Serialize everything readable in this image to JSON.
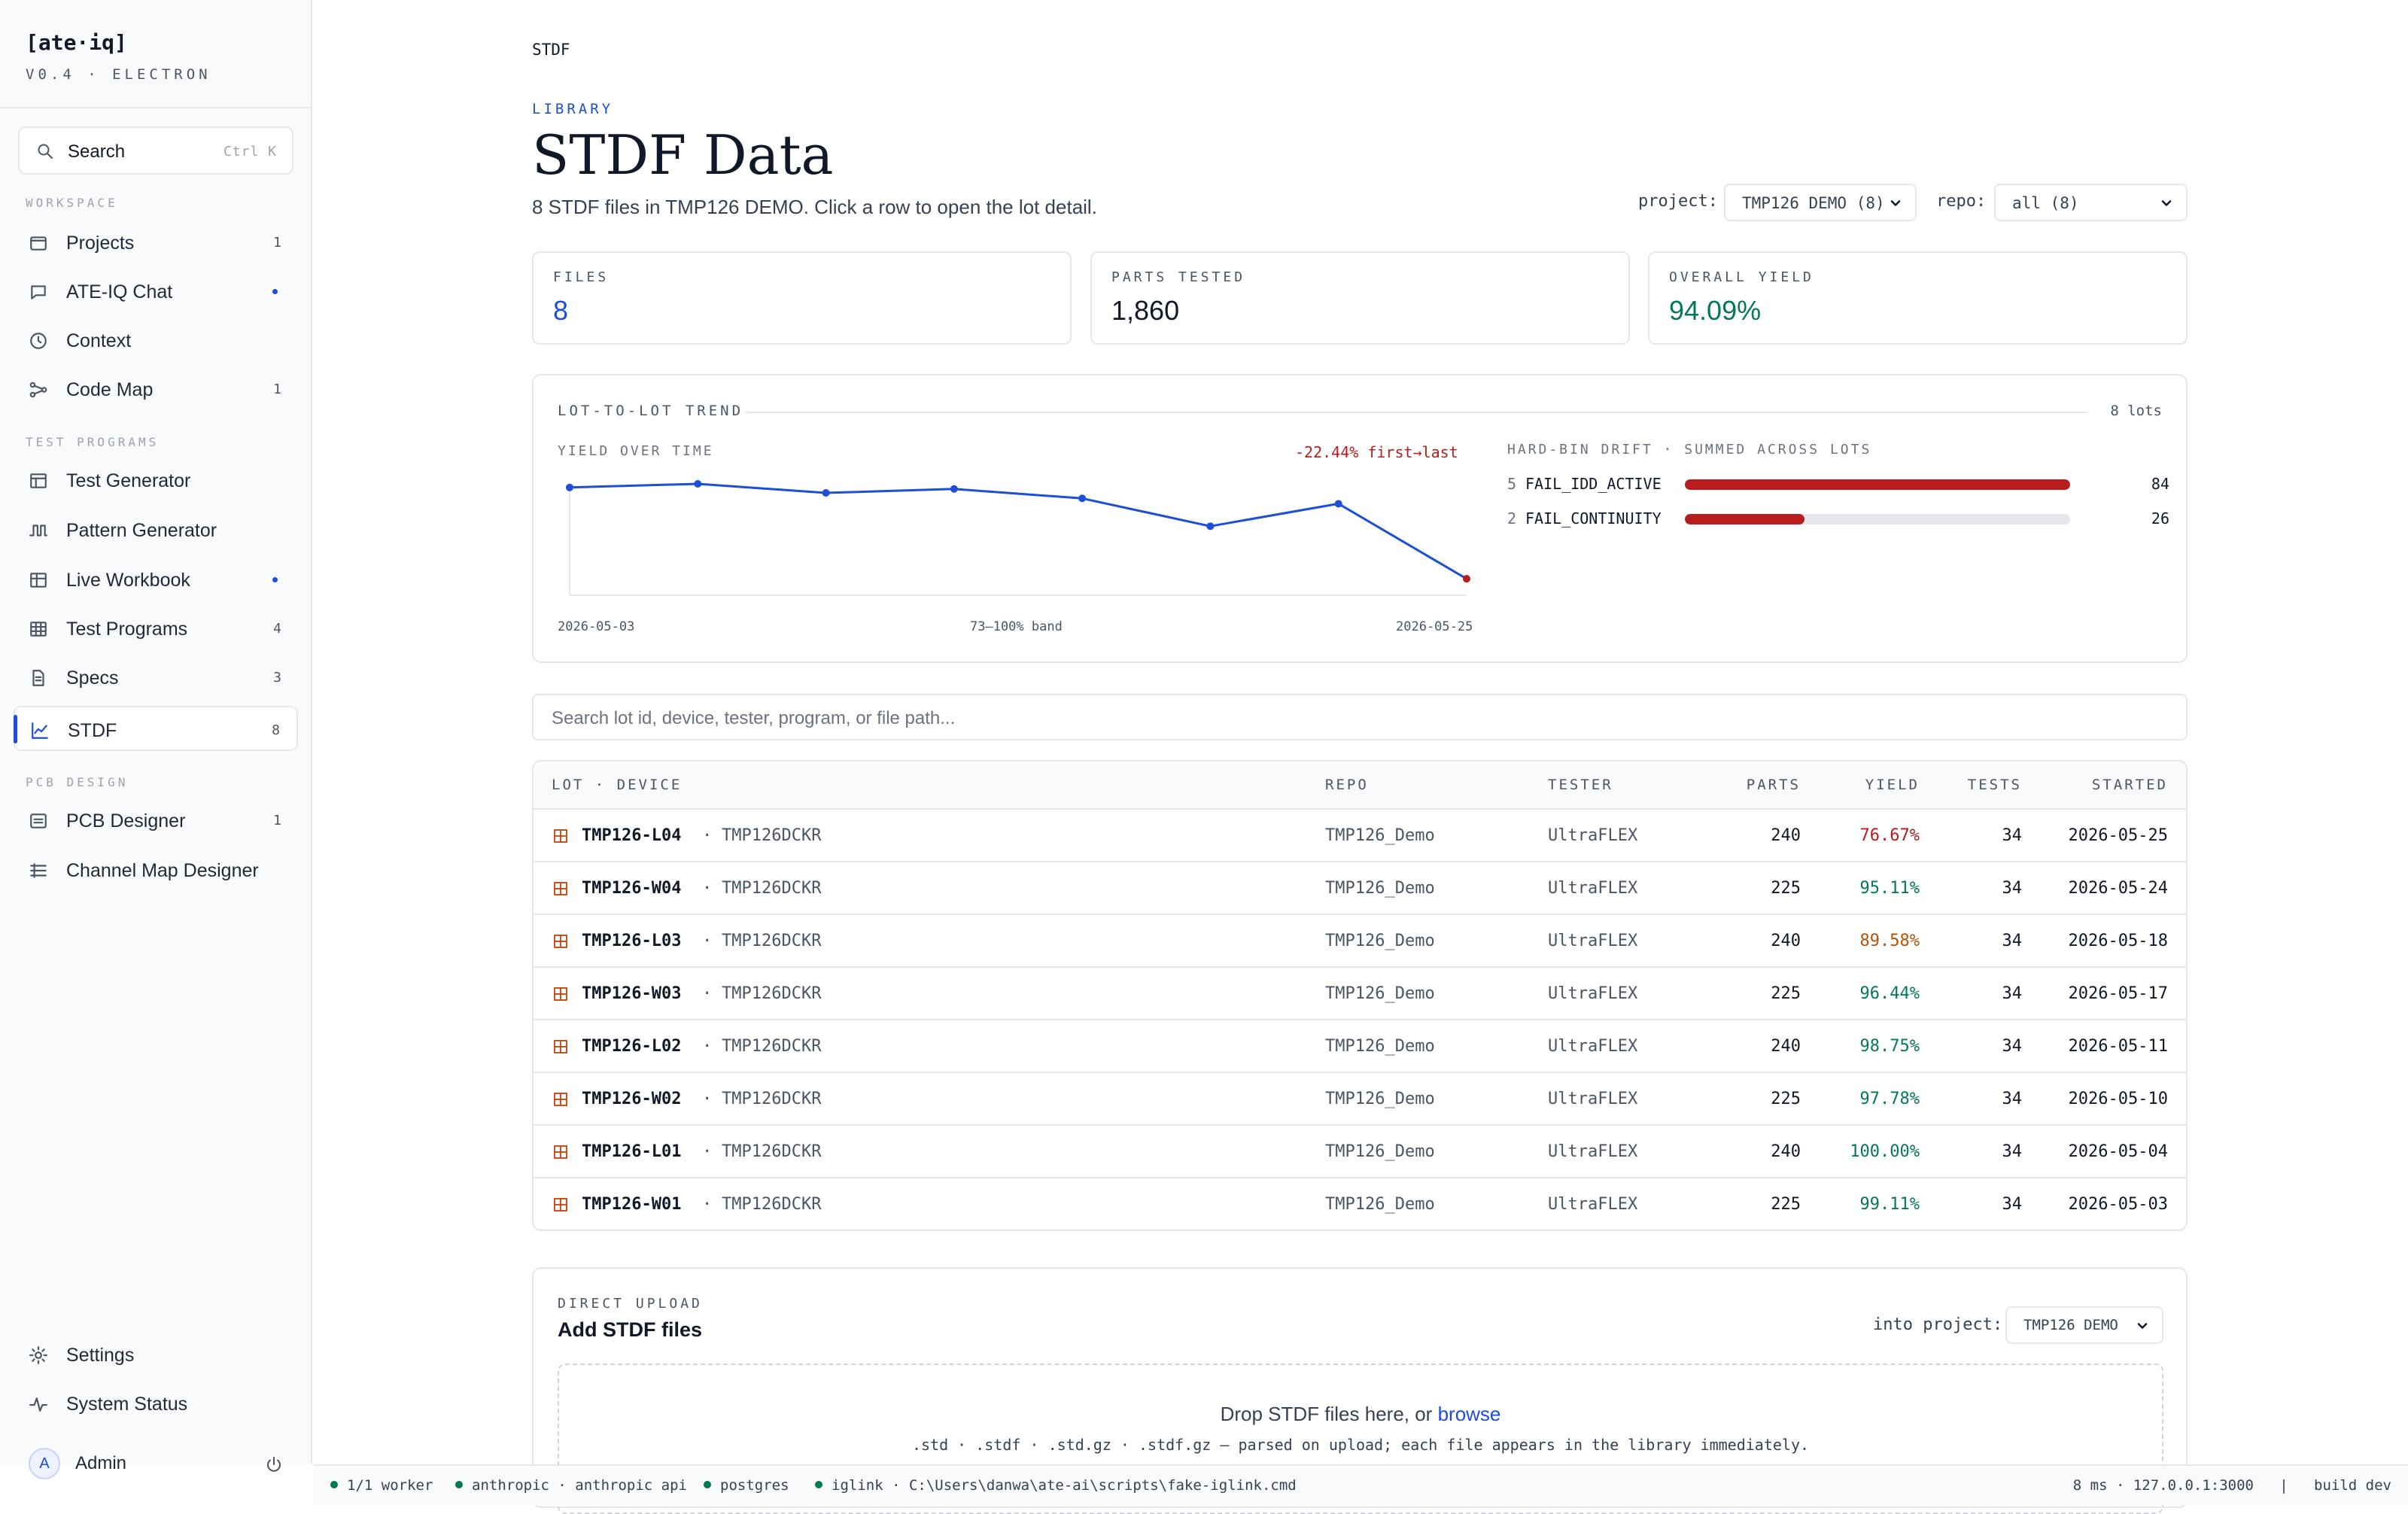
{
  "brand": {
    "name": "[ate·iq]",
    "version": "V0.4 · ELECTRON"
  },
  "search": {
    "label": "Search",
    "shortcut": "Ctrl K"
  },
  "sidebar": {
    "sections": [
      "WORKSPACE",
      "TEST PROGRAMS",
      "PCB DESIGN"
    ],
    "items": [
      {
        "label": "Projects",
        "count": "1"
      },
      {
        "label": "ATE-IQ Chat",
        "dot": true
      },
      {
        "label": "Context"
      },
      {
        "label": "Code Map",
        "count": "1"
      },
      {
        "label": "Test Generator"
      },
      {
        "label": "Pattern Generator"
      },
      {
        "label": "Live Workbook",
        "dot": true
      },
      {
        "label": "Test Programs",
        "count": "4"
      },
      {
        "label": "Specs",
        "count": "3"
      },
      {
        "label": "STDF",
        "count": "8",
        "active": true
      },
      {
        "label": "PCB Designer",
        "count": "1"
      },
      {
        "label": "Channel Map Designer"
      }
    ],
    "footer": [
      {
        "label": "Settings"
      },
      {
        "label": "System Status"
      }
    ],
    "user": {
      "initial": "A",
      "name": "Admin"
    }
  },
  "page": {
    "breadcrumb": "STDF",
    "kicker": "LIBRARY",
    "title": "STDF Data",
    "subtitle": "8 STDF files in TMP126 DEMO. Click a row to open the lot detail.",
    "filters": {
      "project_label": "project:",
      "project_value": "TMP126 DEMO (8)",
      "repo_label": "repo:",
      "repo_value": "all (8)"
    }
  },
  "stats": [
    {
      "label": "FILES",
      "value": "8",
      "color": "#1d4ed8"
    },
    {
      "label": "PARTS TESTED",
      "value": "1,860",
      "color": "#111827"
    },
    {
      "label": "OVERALL YIELD",
      "value": "94.09%",
      "color": "#047857"
    }
  ],
  "trend": {
    "header": "LOT-TO-LOT TREND",
    "lots": "8 lots",
    "yield_label": "YIELD OVER TIME",
    "delta": "-22.44% first→last",
    "x_start": "2026-05-03",
    "x_end": "2026-05-25",
    "band": "73–100% band",
    "drift_label": "HARD-BIN DRIFT · SUMMED ACROSS LOTS",
    "drift": [
      {
        "bin": "5",
        "name": "FAIL_IDD_ACTIVE",
        "count": "84",
        "fraction": 1.0
      },
      {
        "bin": "2",
        "name": "FAIL_CONTINUITY",
        "count": "26",
        "fraction": 0.31
      }
    ]
  },
  "chart_data": {
    "type": "line",
    "x": [
      "2026-05-03",
      "2026-05-04",
      "2026-05-10",
      "2026-05-11",
      "2026-05-17",
      "2026-05-18",
      "2026-05-24",
      "2026-05-25"
    ],
    "series": [
      {
        "values": [
          99.11,
          100.0,
          97.78,
          98.75,
          96.44,
          89.58,
          95.11,
          76.67
        ]
      }
    ],
    "ylim": [
      73,
      100
    ],
    "title": "YIELD OVER TIME"
  },
  "list_search": {
    "placeholder": "Search lot id, device, tester, program, or file path..."
  },
  "table": {
    "headers": [
      "LOT · DEVICE",
      "REPO",
      "TESTER",
      "PARTS",
      "YIELD",
      "TESTS",
      "STARTED"
    ],
    "rows": [
      {
        "lot": "TMP126-L04",
        "device": "TMP126DCKR",
        "repo": "TMP126_Demo",
        "tester": "UltraFLEX",
        "parts": "240",
        "yield": "76.67%",
        "tone": "red",
        "tests": "34",
        "started": "2026-05-25"
      },
      {
        "lot": "TMP126-W04",
        "device": "TMP126DCKR",
        "repo": "TMP126_Demo",
        "tester": "UltraFLEX",
        "parts": "225",
        "yield": "95.11%",
        "tone": "green",
        "tests": "34",
        "started": "2026-05-24"
      },
      {
        "lot": "TMP126-L03",
        "device": "TMP126DCKR",
        "repo": "TMP126_Demo",
        "tester": "UltraFLEX",
        "parts": "240",
        "yield": "89.58%",
        "tone": "amber",
        "tests": "34",
        "started": "2026-05-18"
      },
      {
        "lot": "TMP126-W03",
        "device": "TMP126DCKR",
        "repo": "TMP126_Demo",
        "tester": "UltraFLEX",
        "parts": "225",
        "yield": "96.44%",
        "tone": "green",
        "tests": "34",
        "started": "2026-05-17"
      },
      {
        "lot": "TMP126-L02",
        "device": "TMP126DCKR",
        "repo": "TMP126_Demo",
        "tester": "UltraFLEX",
        "parts": "240",
        "yield": "98.75%",
        "tone": "green",
        "tests": "34",
        "started": "2026-05-11"
      },
      {
        "lot": "TMP126-W02",
        "device": "TMP126DCKR",
        "repo": "TMP126_Demo",
        "tester": "UltraFLEX",
        "parts": "225",
        "yield": "97.78%",
        "tone": "green",
        "tests": "34",
        "started": "2026-05-10"
      },
      {
        "lot": "TMP126-L01",
        "device": "TMP126DCKR",
        "repo": "TMP126_Demo",
        "tester": "UltraFLEX",
        "parts": "240",
        "yield": "100.00%",
        "tone": "green",
        "tests": "34",
        "started": "2026-05-04"
      },
      {
        "lot": "TMP126-W01",
        "device": "TMP126DCKR",
        "repo": "TMP126_Demo",
        "tester": "UltraFLEX",
        "parts": "225",
        "yield": "99.11%",
        "tone": "green",
        "tests": "34",
        "started": "2026-05-03"
      }
    ]
  },
  "upload": {
    "kicker": "DIRECT UPLOAD",
    "title": "Add STDF files",
    "into_label": "into project:",
    "project": "TMP126 DEMO",
    "drop_text": "Drop STDF files here, or",
    "browse": "browse",
    "hint": ".std · .stdf · .std.gz · .stdf.gz — parsed on upload; each file appears in the library immediately."
  },
  "status": {
    "items": [
      "1/1 worker",
      "anthropic · anthropic api",
      "postgres",
      "iglink · C:\\Users\\danwa\\ate-ai\\scripts\\fake-iglink.cmd"
    ],
    "right": "8 ms · 127.0.0.1:3000   |   build dev"
  },
  "colors": {
    "accent": "#1d4ed8",
    "good": "#047857",
    "bad": "#b91c1c",
    "warn": "#b45309"
  }
}
